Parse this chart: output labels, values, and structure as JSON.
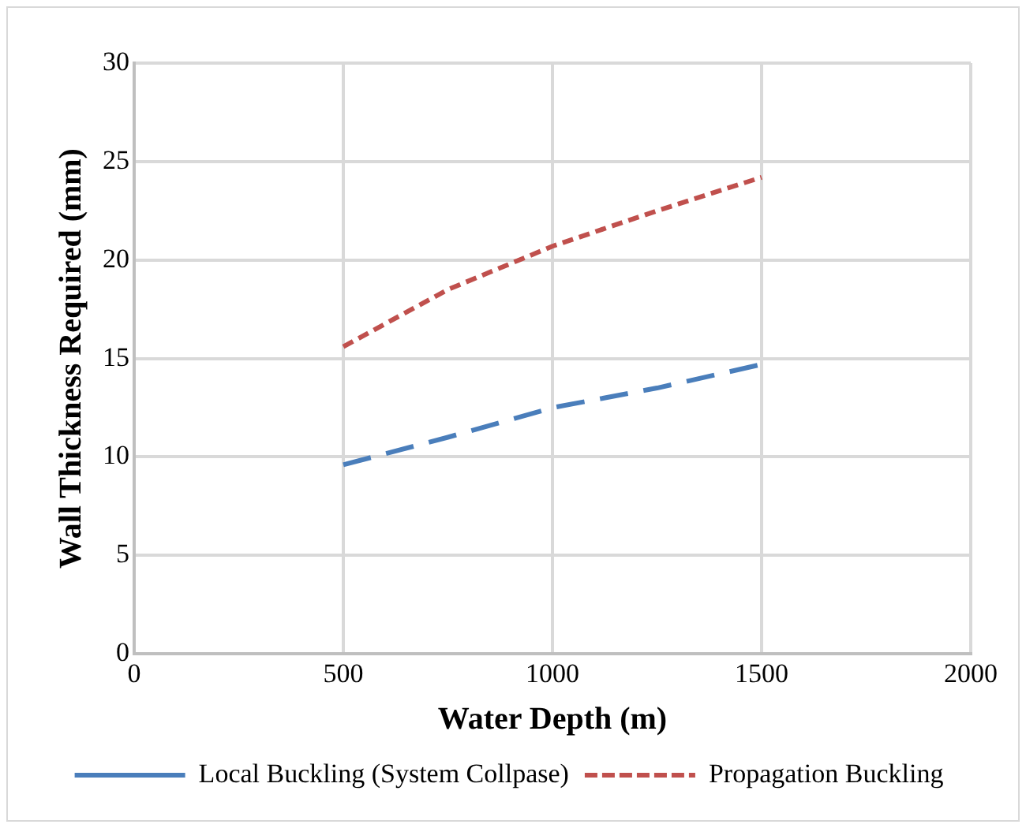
{
  "chart_data": {
    "type": "line",
    "xlabel": "Water Depth (m)",
    "ylabel": "Wall Thickness Required (mm)",
    "x": [
      500,
      750,
      1000,
      1250,
      1500
    ],
    "series": [
      {
        "name": "Local Buckling (System Collpase)",
        "color": "#4a7ebb",
        "line_style": "dashed",
        "values": [
          9.6,
          11.0,
          12.5,
          13.5,
          14.7
        ]
      },
      {
        "name": "Propagation Buckling",
        "color": "#c0504d",
        "line_style": "dotted",
        "values": [
          15.6,
          18.5,
          20.7,
          22.5,
          24.2
        ]
      }
    ],
    "xlim": [
      0,
      2000
    ],
    "xticks": [
      0,
      500,
      1000,
      1500,
      2000
    ],
    "ylim": [
      0,
      30
    ],
    "yticks": [
      0,
      5,
      10,
      15,
      20,
      25,
      30
    ],
    "grid": true,
    "legend": "bottom",
    "marker": "none"
  }
}
